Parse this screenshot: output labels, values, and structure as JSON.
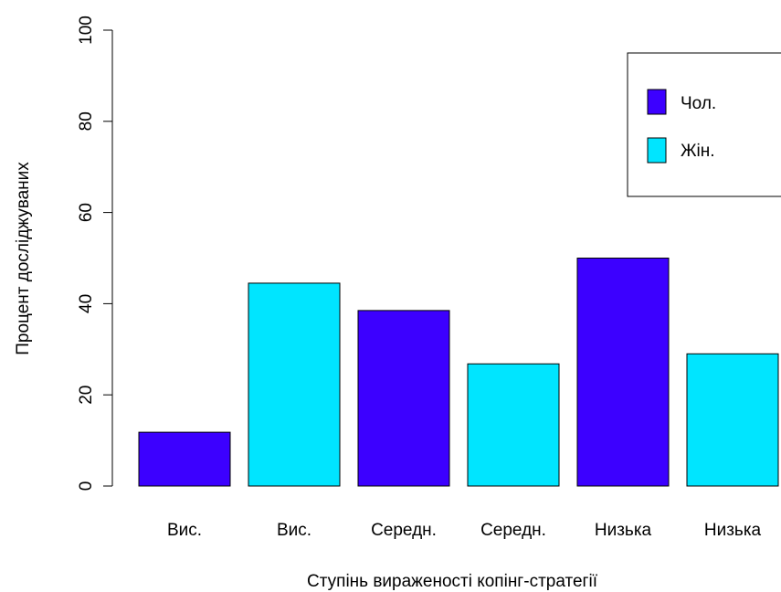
{
  "chart_data": {
    "type": "bar",
    "categories": [
      "Вис.",
      "Вис.",
      "Середн.",
      "Середн.",
      "Низька",
      "Низька"
    ],
    "values": [
      11.8,
      44.5,
      38.5,
      26.8,
      50.0,
      29.0
    ],
    "series_of_bar": [
      "Чол.",
      "Жін.",
      "Чол.",
      "Жін.",
      "Чол.",
      "Жін."
    ],
    "xlabel": "Ступінь вираженості копінг-стратегії",
    "ylabel": "Процент досліджуваних",
    "ylim": [
      0,
      100
    ],
    "yticks": [
      "0",
      "20",
      "40",
      "60",
      "80",
      "100"
    ],
    "ytick_values": [
      0,
      20,
      40,
      60,
      80,
      100
    ],
    "grid": false,
    "legend": {
      "placement": "top-right",
      "entries": [
        {
          "name": "Чол.",
          "color": "#3c00ff"
        },
        {
          "name": "Жін.",
          "color": "#00e5ff"
        }
      ]
    },
    "colors": {
      "Чол.": "#3c00ff",
      "Жін.": "#00e5ff"
    }
  }
}
